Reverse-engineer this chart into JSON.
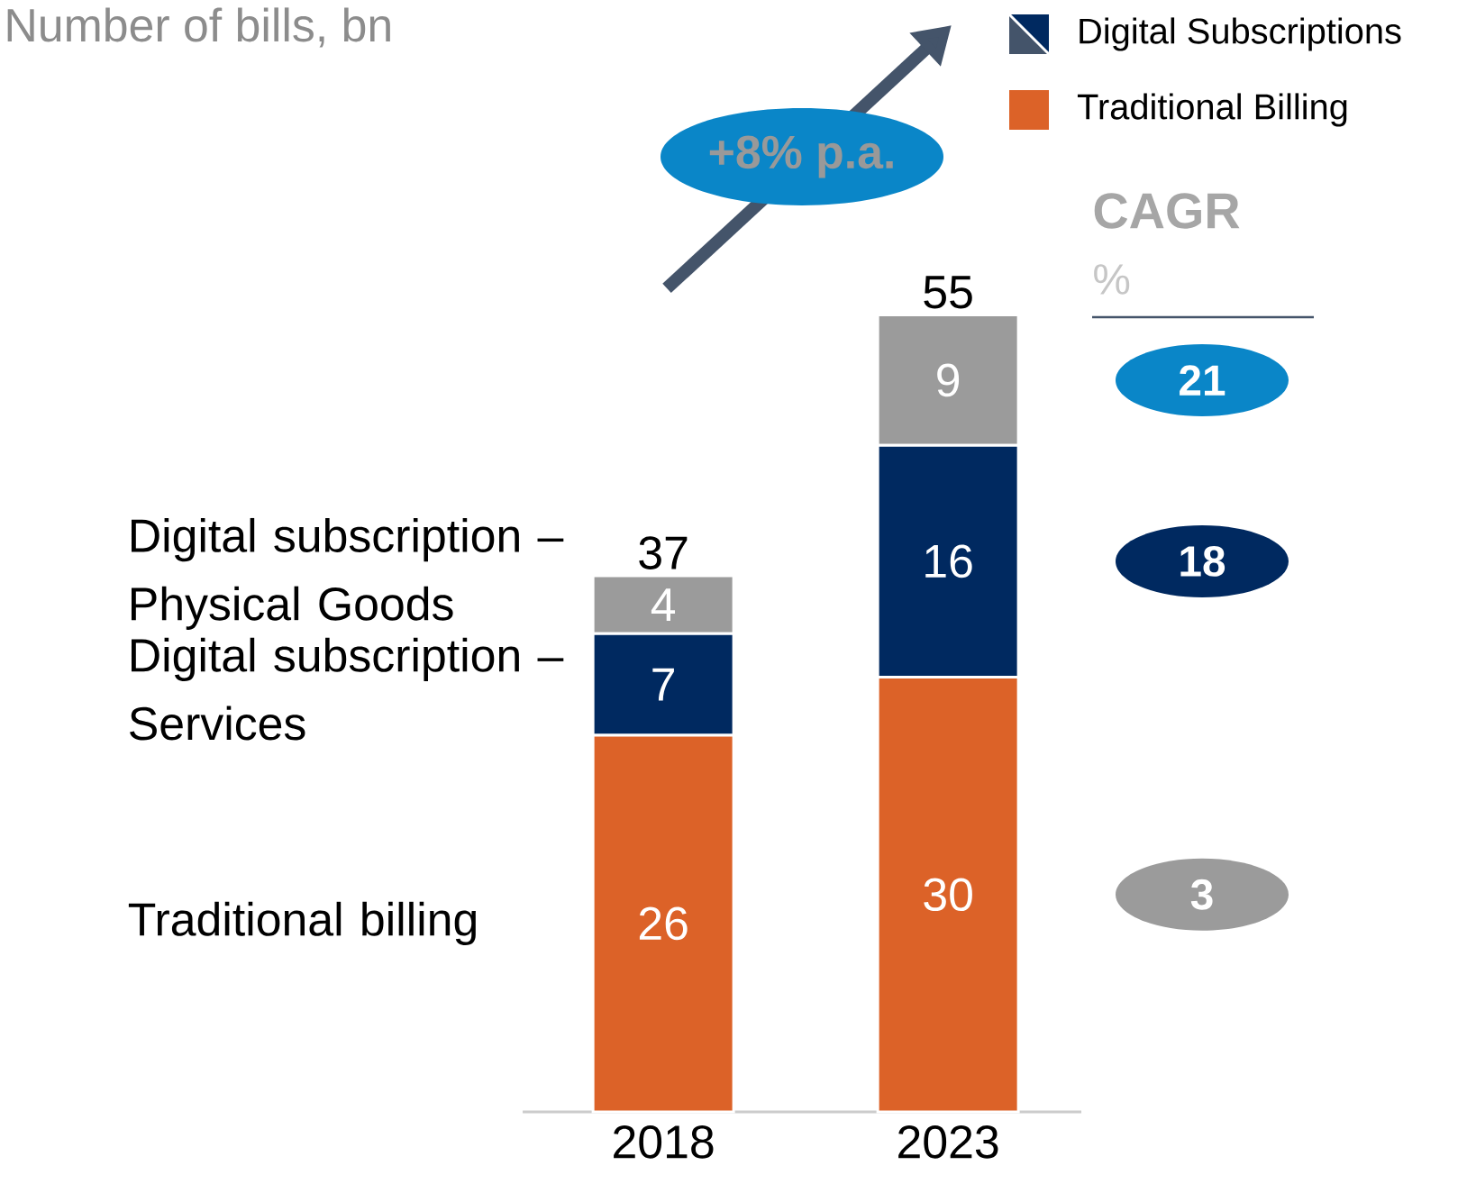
{
  "chart_data": {
    "type": "bar",
    "stacked": true,
    "title": "Number of bills, bn",
    "categories": [
      "2018",
      "2023"
    ],
    "series": [
      {
        "name": "Traditional billing",
        "color": "#dc6228",
        "values": [
          26,
          30
        ]
      },
      {
        "name": "Digital subscription – Services",
        "color": "#002960",
        "values": [
          7,
          16
        ]
      },
      {
        "name": "Digital subscription – Physical Goods",
        "color": "#9b9b9b",
        "values": [
          4,
          9
        ]
      }
    ],
    "data_labels": true,
    "totals": [
      "37",
      "55"
    ],
    "annotations": [
      "+8% p.a.",
      "Digital Subscriptions",
      "Traditional Billing",
      "CAGR",
      "%",
      "21",
      "18",
      "3"
    ]
  }
}
